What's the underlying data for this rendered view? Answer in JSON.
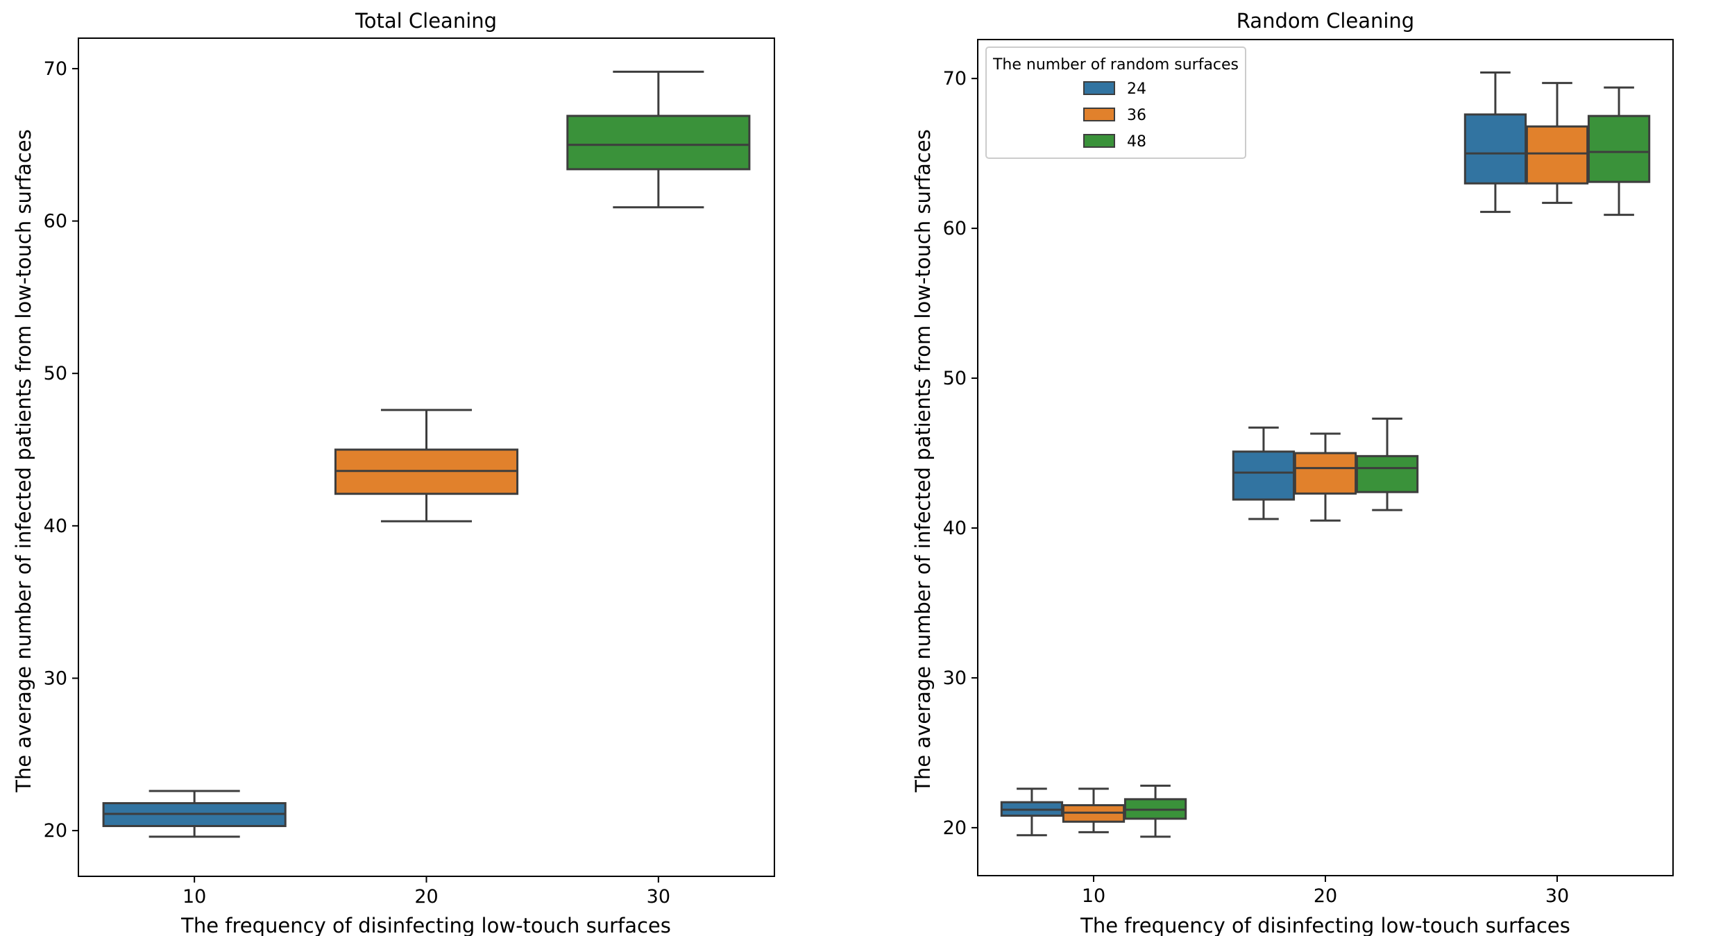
{
  "chart_data": [
    {
      "type": "box",
      "title": "Total Cleaning",
      "xlabel": "The frequency of disinfecting low-touch surfaces",
      "ylabel": "The average number of infected patients from low-touch surfaces",
      "categories": [
        "10",
        "20",
        "30"
      ],
      "ylim": [
        17,
        72
      ],
      "yticks": [
        20,
        30,
        40,
        50,
        60,
        70
      ],
      "series": [
        {
          "name": "all",
          "boxes": [
            {
              "category": "10",
              "whislo": 19.6,
              "q1": 20.3,
              "med": 21.1,
              "q3": 21.8,
              "whishi": 22.6,
              "color": "#3274a1"
            },
            {
              "category": "20",
              "whislo": 40.3,
              "q1": 42.1,
              "med": 43.6,
              "q3": 45.0,
              "whishi": 47.6,
              "color": "#e1812c"
            },
            {
              "category": "30",
              "whislo": 60.9,
              "q1": 63.4,
              "med": 65.0,
              "q3": 66.9,
              "whishi": 69.8,
              "color": "#3a923a"
            }
          ]
        }
      ]
    },
    {
      "type": "box",
      "title": "Random Cleaning",
      "xlabel": "The frequency of disinfecting low-touch surfaces",
      "ylabel": "The average number of infected patients from low-touch surfaces",
      "categories": [
        "10",
        "20",
        "30"
      ],
      "ylim": [
        16.8,
        72.6
      ],
      "yticks": [
        20,
        30,
        40,
        50,
        60,
        70
      ],
      "legend": {
        "title": "The number of random surfaces",
        "position": "upper-left",
        "entries": [
          "24",
          "36",
          "48"
        ]
      },
      "series": [
        {
          "name": "24",
          "color": "#3274a1",
          "boxes": [
            {
              "category": "10",
              "whislo": 19.5,
              "q1": 20.8,
              "med": 21.2,
              "q3": 21.7,
              "whishi": 22.6
            },
            {
              "category": "20",
              "whislo": 40.6,
              "q1": 41.9,
              "med": 43.7,
              "q3": 45.1,
              "whishi": 46.7
            },
            {
              "category": "30",
              "whislo": 61.1,
              "q1": 63.0,
              "med": 65.0,
              "q3": 67.6,
              "whishi": 70.4
            }
          ]
        },
        {
          "name": "36",
          "color": "#e1812c",
          "boxes": [
            {
              "category": "10",
              "whislo": 19.7,
              "q1": 20.4,
              "med": 21.0,
              "q3": 21.5,
              "whishi": 22.6
            },
            {
              "category": "20",
              "whislo": 40.5,
              "q1": 42.3,
              "med": 44.0,
              "q3": 45.0,
              "whishi": 46.3
            },
            {
              "category": "30",
              "whislo": 61.7,
              "q1": 63.0,
              "med": 65.0,
              "q3": 66.8,
              "whishi": 69.7
            }
          ]
        },
        {
          "name": "48",
          "color": "#3a923a",
          "boxes": [
            {
              "category": "10",
              "whislo": 19.4,
              "q1": 20.6,
              "med": 21.2,
              "q3": 21.9,
              "whishi": 22.8
            },
            {
              "category": "20",
              "whislo": 41.2,
              "q1": 42.4,
              "med": 44.0,
              "q3": 44.8,
              "whishi": 47.3
            },
            {
              "category": "30",
              "whislo": 60.9,
              "q1": 63.1,
              "med": 65.1,
              "q3": 67.5,
              "whishi": 69.4
            }
          ]
        }
      ]
    }
  ]
}
